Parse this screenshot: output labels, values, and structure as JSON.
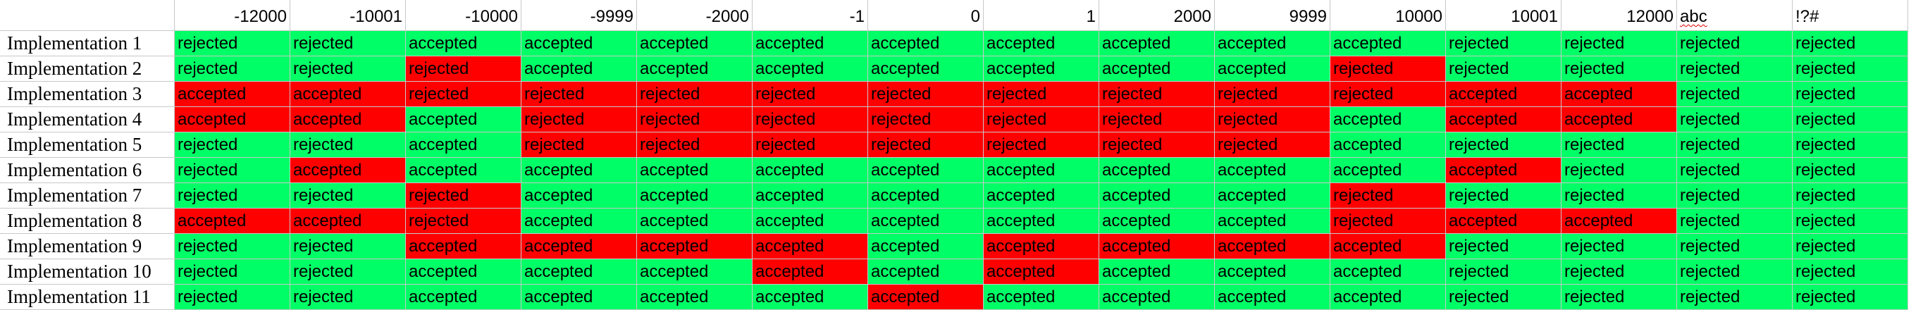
{
  "columns": [
    "-12000",
    "-10001",
    "-10000",
    "-9999",
    "-2000",
    "-1",
    "0",
    "1",
    "2000",
    "9999",
    "10000",
    "10001",
    "12000",
    "abc",
    "!?#"
  ],
  "column_align": [
    "right",
    "right",
    "right",
    "right",
    "right",
    "right",
    "right",
    "right",
    "right",
    "right",
    "right",
    "right",
    "right",
    "left",
    "left"
  ],
  "spellcheck_flagged_column": "abc",
  "colors": {
    "ok": "#00ff66",
    "bad": "#ff0000",
    "grid": "#c8c8c8"
  },
  "rows": [
    {
      "label": "Implementation 1",
      "values": [
        "rejected",
        "rejected",
        "accepted",
        "accepted",
        "accepted",
        "accepted",
        "accepted",
        "accepted",
        "accepted",
        "accepted",
        "accepted",
        "rejected",
        "rejected",
        "rejected",
        "rejected"
      ],
      "status": [
        "ok",
        "ok",
        "ok",
        "ok",
        "ok",
        "ok",
        "ok",
        "ok",
        "ok",
        "ok",
        "ok",
        "ok",
        "ok",
        "ok",
        "ok"
      ]
    },
    {
      "label": "Implementation 2",
      "values": [
        "rejected",
        "rejected",
        "rejected",
        "accepted",
        "accepted",
        "accepted",
        "accepted",
        "accepted",
        "accepted",
        "accepted",
        "rejected",
        "rejected",
        "rejected",
        "rejected",
        "rejected"
      ],
      "status": [
        "ok",
        "ok",
        "bad",
        "ok",
        "ok",
        "ok",
        "ok",
        "ok",
        "ok",
        "ok",
        "bad",
        "ok",
        "ok",
        "ok",
        "ok"
      ]
    },
    {
      "label": "Implementation 3",
      "values": [
        "accepted",
        "accepted",
        "rejected",
        "rejected",
        "rejected",
        "rejected",
        "rejected",
        "rejected",
        "rejected",
        "rejected",
        "rejected",
        "accepted",
        "accepted",
        "rejected",
        "rejected"
      ],
      "status": [
        "bad",
        "bad",
        "bad",
        "bad",
        "bad",
        "bad",
        "bad",
        "bad",
        "bad",
        "bad",
        "bad",
        "bad",
        "bad",
        "ok",
        "ok"
      ]
    },
    {
      "label": "Implementation 4",
      "values": [
        "accepted",
        "accepted",
        "accepted",
        "rejected",
        "rejected",
        "rejected",
        "rejected",
        "rejected",
        "rejected",
        "rejected",
        "accepted",
        "accepted",
        "accepted",
        "rejected",
        "rejected"
      ],
      "status": [
        "bad",
        "bad",
        "ok",
        "bad",
        "bad",
        "bad",
        "bad",
        "bad",
        "bad",
        "bad",
        "ok",
        "bad",
        "bad",
        "ok",
        "ok"
      ]
    },
    {
      "label": "Implementation 5",
      "values": [
        "rejected",
        "rejected",
        "accepted",
        "rejected",
        "rejected",
        "rejected",
        "rejected",
        "rejected",
        "rejected",
        "rejected",
        "accepted",
        "rejected",
        "rejected",
        "rejected",
        "rejected"
      ],
      "status": [
        "ok",
        "ok",
        "ok",
        "bad",
        "bad",
        "bad",
        "bad",
        "bad",
        "bad",
        "bad",
        "ok",
        "ok",
        "ok",
        "ok",
        "ok"
      ]
    },
    {
      "label": "Implementation 6",
      "values": [
        "rejected",
        "accepted",
        "accepted",
        "accepted",
        "accepted",
        "accepted",
        "accepted",
        "accepted",
        "accepted",
        "accepted",
        "accepted",
        "accepted",
        "rejected",
        "rejected",
        "rejected"
      ],
      "status": [
        "ok",
        "bad",
        "ok",
        "ok",
        "ok",
        "ok",
        "ok",
        "ok",
        "ok",
        "ok",
        "ok",
        "bad",
        "ok",
        "ok",
        "ok"
      ]
    },
    {
      "label": "Implementation 7",
      "values": [
        "rejected",
        "rejected",
        "rejected",
        "accepted",
        "accepted",
        "accepted",
        "accepted",
        "accepted",
        "accepted",
        "accepted",
        "rejected",
        "rejected",
        "rejected",
        "rejected",
        "rejected"
      ],
      "status": [
        "ok",
        "ok",
        "bad",
        "ok",
        "ok",
        "ok",
        "ok",
        "ok",
        "ok",
        "ok",
        "bad",
        "ok",
        "ok",
        "ok",
        "ok"
      ]
    },
    {
      "label": "Implementation 8",
      "values": [
        "accepted",
        "accepted",
        "rejected",
        "accepted",
        "accepted",
        "accepted",
        "accepted",
        "accepted",
        "accepted",
        "accepted",
        "rejected",
        "accepted",
        "accepted",
        "rejected",
        "rejected"
      ],
      "status": [
        "bad",
        "bad",
        "bad",
        "ok",
        "ok",
        "ok",
        "ok",
        "ok",
        "ok",
        "ok",
        "bad",
        "bad",
        "bad",
        "ok",
        "ok"
      ]
    },
    {
      "label": "Implementation 9",
      "values": [
        "rejected",
        "rejected",
        "accepted",
        "accepted",
        "accepted",
        "accepted",
        "accepted",
        "accepted",
        "accepted",
        "accepted",
        "accepted",
        "rejected",
        "rejected",
        "rejected",
        "rejected"
      ],
      "status": [
        "ok",
        "ok",
        "bad",
        "bad",
        "bad",
        "bad",
        "ok",
        "bad",
        "bad",
        "bad",
        "bad",
        "ok",
        "ok",
        "ok",
        "ok"
      ]
    },
    {
      "label": "Implementation 10",
      "values": [
        "rejected",
        "rejected",
        "accepted",
        "accepted",
        "accepted",
        "accepted",
        "accepted",
        "accepted",
        "accepted",
        "accepted",
        "accepted",
        "rejected",
        "rejected",
        "rejected",
        "rejected"
      ],
      "status": [
        "ok",
        "ok",
        "ok",
        "ok",
        "ok",
        "bad",
        "ok",
        "bad",
        "ok",
        "ok",
        "ok",
        "ok",
        "ok",
        "ok",
        "ok"
      ]
    },
    {
      "label": "Implementation 11",
      "values": [
        "rejected",
        "rejected",
        "accepted",
        "accepted",
        "accepted",
        "accepted",
        "accepted",
        "accepted",
        "accepted",
        "accepted",
        "accepted",
        "rejected",
        "rejected",
        "rejected",
        "rejected"
      ],
      "status": [
        "ok",
        "ok",
        "ok",
        "ok",
        "ok",
        "ok",
        "bad",
        "ok",
        "ok",
        "ok",
        "ok",
        "ok",
        "ok",
        "ok",
        "ok"
      ]
    }
  ]
}
